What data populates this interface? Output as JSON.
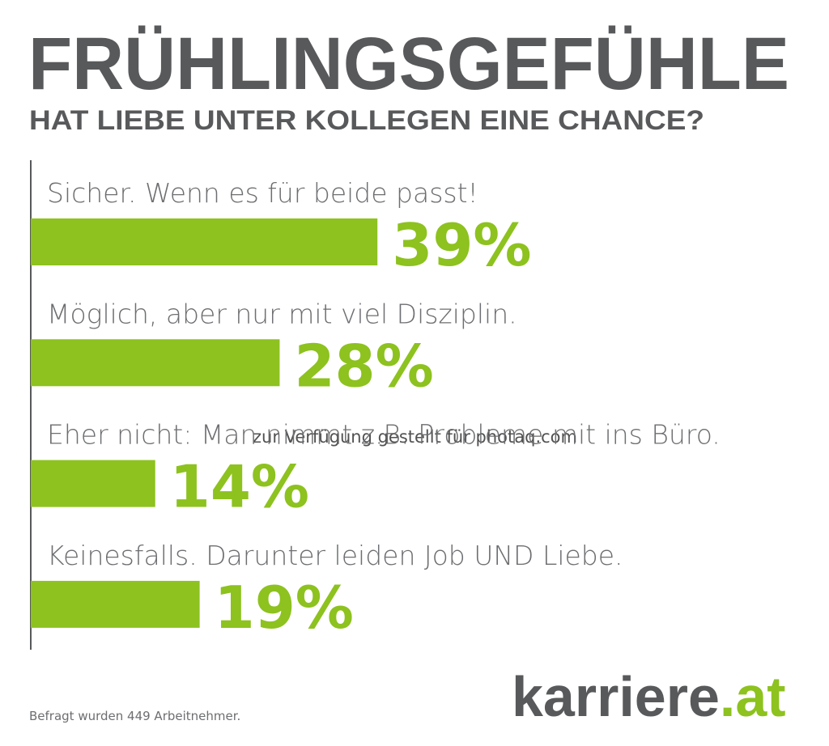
{
  "chart_data": {
    "type": "bar",
    "orientation": "horizontal",
    "title": "FRÜHLINGSGEFÜHLE",
    "subtitle": "HAT LIEBE UNTER KOLLEGEN EINE CHANCE?",
    "categories": [
      "Sicher. Wenn es für beide passt!",
      "Möglich, aber nur mit viel Disziplin.",
      "Eher nicht: Man nimmt z.B. Probleme mit ins Büro.",
      "Keinesfalls. Darunter leiden Job UND Liebe."
    ],
    "values": [
      39,
      28,
      14,
      19
    ],
    "value_labels": [
      "39%",
      "28%",
      "14%",
      "19%"
    ],
    "color": "#8dc21f",
    "footnote": "Befragt wurden 449 Arbeitnehmer.",
    "watermark": "zur Verfügung gestellt für photaq.com"
  },
  "logo": {
    "name": "karriere",
    "suffix": ".at"
  }
}
